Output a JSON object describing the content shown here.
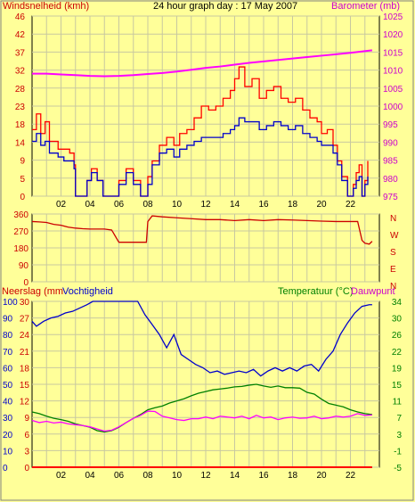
{
  "chart_data": [
    {
      "type": "line",
      "title": "24 hour graph day : 17 May 2007",
      "ylabel": "Windsnelheid (kmh)",
      "y2label": "Barometer (mb)",
      "xticks": [
        "02",
        "04",
        "06",
        "08",
        "10",
        "12",
        "14",
        "16",
        "18",
        "20",
        "22"
      ],
      "ylim": [
        0,
        46
      ],
      "yticks": [
        "0",
        "5",
        "9",
        "14",
        "18",
        "23",
        "28",
        "32",
        "37",
        "42",
        "46"
      ],
      "y2lim": [
        975,
        1025
      ],
      "y2ticks": [
        "975",
        "980",
        "985",
        "990",
        "995",
        "1000",
        "1005",
        "1010",
        "1015",
        "1020",
        "1025"
      ],
      "colors": {
        "gust": "#ff0000",
        "wind": "#0000cc",
        "barometer": "#ff00ff"
      },
      "series": [
        {
          "key": "gust",
          "axis": "y",
          "x": [
            0,
            0.3,
            0.6,
            0.9,
            1.2,
            1.5,
            1.8,
            2.2,
            2.6,
            2.9,
            3,
            3.4,
            3.5,
            3.8,
            4.1,
            4.5,
            4.9,
            5.1,
            5.4,
            5.7,
            6,
            6.5,
            7,
            7.5,
            7.9,
            8,
            8.3,
            8.8,
            9.3,
            9.8,
            10.2,
            10.7,
            11.2,
            11.7,
            12.2,
            12.7,
            13.2,
            13.7,
            14,
            14.3,
            14.7,
            15.2,
            15.7,
            16.2,
            16.7,
            17.2,
            17.7,
            18.2,
            18.7,
            19.2,
            19.7,
            20,
            20.4,
            20.8,
            21.1,
            21.4,
            21.8,
            22,
            22.2,
            22.4,
            22.6,
            22.8,
            23,
            23.2
          ],
          "y": [
            17,
            21,
            16,
            19,
            14,
            14,
            12,
            12,
            11,
            8,
            0,
            0,
            0,
            4,
            7,
            4,
            0,
            0,
            0,
            0,
            4,
            7,
            4,
            0,
            0,
            5,
            9,
            13,
            15,
            13,
            16,
            17,
            20,
            23,
            22,
            23,
            25,
            27,
            30,
            33,
            28,
            30,
            25,
            27,
            28,
            25,
            24,
            25,
            22,
            20,
            19,
            16,
            17,
            13,
            9,
            5,
            0,
            0,
            3,
            6,
            8,
            0,
            4,
            9
          ]
        },
        {
          "key": "wind",
          "axis": "y",
          "x": [
            0,
            0.3,
            0.6,
            0.9,
            1.2,
            1.5,
            1.8,
            2.2,
            2.6,
            2.9,
            3,
            3.4,
            3.5,
            3.8,
            4.1,
            4.5,
            4.9,
            5.1,
            5.4,
            5.7,
            6,
            6.5,
            7,
            7.5,
            7.9,
            8,
            8.3,
            8.8,
            9.3,
            9.8,
            10.2,
            10.7,
            11.2,
            11.7,
            12.2,
            12.7,
            13.2,
            13.7,
            14,
            14.3,
            14.7,
            15.2,
            15.7,
            16.2,
            16.7,
            17.2,
            17.7,
            18.2,
            18.7,
            19.2,
            19.7,
            20,
            20.4,
            20.8,
            21.1,
            21.4,
            21.8,
            22,
            22.2,
            22.4,
            22.6,
            22.8,
            23,
            23.2
          ],
          "y": [
            14,
            16,
            13,
            14,
            11,
            11,
            10,
            9,
            9,
            7,
            0,
            0,
            0,
            4,
            6,
            4,
            0,
            0,
            0,
            0,
            3,
            6,
            3,
            0,
            0,
            3,
            8,
            11,
            12,
            10,
            12,
            13,
            14,
            15,
            15,
            15,
            16,
            17,
            18,
            20,
            19,
            19,
            17,
            18,
            19,
            18,
            17,
            18,
            16,
            15,
            14,
            13,
            13,
            11,
            8,
            4,
            0,
            0,
            2,
            4,
            5,
            0,
            3,
            5
          ]
        },
        {
          "key": "barometer",
          "axis": "y2",
          "x": [
            0,
            1,
            2,
            3,
            4,
            5,
            6,
            7,
            8,
            9,
            10,
            11,
            12,
            13,
            14,
            15,
            16,
            17,
            18,
            19,
            20,
            21,
            22,
            23.5
          ],
          "y": [
            1009,
            1009,
            1008.8,
            1008.6,
            1008.4,
            1008.3,
            1008.4,
            1008.6,
            1008.9,
            1009.2,
            1009.6,
            1010.1,
            1010.6,
            1011.0,
            1011.5,
            1012.0,
            1012.4,
            1012.8,
            1013.2,
            1013.6,
            1014.0,
            1014.4,
            1014.8,
            1015.5
          ]
        }
      ]
    },
    {
      "type": "line",
      "yticks": [
        "0",
        "90",
        "180",
        "270",
        "360"
      ],
      "ylim": [
        0,
        360
      ],
      "y2ticks": [
        "N",
        "W",
        "S",
        "E",
        "N"
      ],
      "colors": {
        "direction": "#cc0000"
      },
      "series": [
        {
          "key": "direction",
          "x": [
            0,
            0.5,
            1,
            1.5,
            2,
            2.5,
            3,
            3.5,
            4,
            4.5,
            5,
            5.5,
            6,
            6.5,
            7,
            7.5,
            7.9,
            8,
            8.3,
            9,
            10,
            11,
            12,
            13,
            14,
            15,
            16,
            17,
            18,
            19,
            20,
            21,
            22,
            22.5,
            22.8,
            23,
            23.3,
            23.5
          ],
          "y": [
            320,
            318,
            315,
            305,
            300,
            290,
            285,
            282,
            280,
            280,
            280,
            275,
            210,
            210,
            210,
            210,
            210,
            320,
            350,
            345,
            340,
            335,
            330,
            330,
            325,
            330,
            325,
            330,
            328,
            325,
            322,
            320,
            320,
            320,
            220,
            205,
            200,
            215
          ]
        }
      ]
    },
    {
      "type": "line",
      "ylabel": "Neerslag (mm",
      "ylabel_b": "Vochtigheid",
      "y2label": "Temperatuur (°C)",
      "y2label_b": "Dauwpunt",
      "xticks": [
        "02",
        "04",
        "06",
        "08",
        "10",
        "12",
        "14",
        "16",
        "18",
        "20",
        "22"
      ],
      "ylim": [
        0,
        30
      ],
      "yticks": [
        "0",
        "3",
        "6",
        "9",
        "12",
        "15",
        "18",
        "21",
        "24",
        "27",
        "30"
      ],
      "humlim": [
        0,
        100
      ],
      "humticks": [
        "0",
        "10",
        "20",
        "30",
        "40",
        "50",
        "60",
        "70",
        "80",
        "90",
        "100"
      ],
      "y2lim": [
        -5,
        34
      ],
      "y2ticks": [
        "-5",
        "-1",
        "3",
        "7",
        "11",
        "15",
        "19",
        "22",
        "26",
        "30",
        "34"
      ],
      "colors": {
        "humidity": "#0000cc",
        "temperature": "#008000",
        "dewpoint": "#ff00ff",
        "rain": "#ff0000"
      },
      "series": [
        {
          "key": "humidity",
          "axis": "hum",
          "x": [
            0,
            0.3,
            0.8,
            1.3,
            1.8,
            2.3,
            2.8,
            3.3,
            3.8,
            4.2,
            4.8,
            5.3,
            5.8,
            6.3,
            6.8,
            7.3,
            7.8,
            8.3,
            8.8,
            9.3,
            9.8,
            10.3,
            10.8,
            11.3,
            11.8,
            12.3,
            12.8,
            13.3,
            13.8,
            14.3,
            14.8,
            15.3,
            15.8,
            16.3,
            16.8,
            17.3,
            17.8,
            18.3,
            18.8,
            19.3,
            19.8,
            20.3,
            20.8,
            21.3,
            21.8,
            22.3,
            22.8,
            23.3,
            23.5
          ],
          "y": [
            88,
            85,
            88,
            90,
            91,
            93,
            94,
            96,
            98,
            100,
            100,
            100,
            100,
            100,
            100,
            100,
            92,
            86,
            80,
            72,
            80,
            68,
            65,
            62,
            60,
            57,
            58,
            56,
            57,
            58,
            57,
            59,
            55,
            58,
            60,
            58,
            60,
            58,
            61,
            62,
            58,
            65,
            70,
            80,
            87,
            93,
            97,
            98,
            98
          ]
        },
        {
          "key": "temperature",
          "axis": "y2",
          "x": [
            0,
            0.5,
            1,
            1.5,
            2,
            2.5,
            3,
            3.5,
            4,
            4.5,
            5,
            5.5,
            6,
            6.5,
            7,
            7.5,
            8,
            8.5,
            9,
            9.5,
            10,
            10.5,
            11,
            11.5,
            12,
            12.5,
            13,
            13.5,
            14,
            14.5,
            15,
            15.5,
            16,
            16.5,
            17,
            17.5,
            18,
            18.5,
            19,
            19.5,
            20,
            20.5,
            21,
            21.5,
            22,
            22.5,
            23,
            23.5
          ],
          "y": [
            8,
            7.6,
            7,
            6.5,
            6.2,
            5.8,
            5.2,
            4.8,
            4.4,
            3.6,
            3.3,
            3.6,
            4.4,
            5.5,
            6.5,
            7.4,
            8.5,
            9,
            9.4,
            10.1,
            10.6,
            11.1,
            11.8,
            12.4,
            12.8,
            13.2,
            13.4,
            13.6,
            13.9,
            14,
            14.3,
            14.5,
            14.1,
            13.8,
            14.1,
            13.7,
            13.7,
            13.6,
            12.6,
            12.2,
            11,
            10,
            9.6,
            9.2,
            8.5,
            8,
            7.6,
            7.4
          ]
        },
        {
          "key": "dewpoint",
          "axis": "y2",
          "x": [
            0,
            0.5,
            1,
            1.5,
            2,
            2.5,
            3,
            3.5,
            4,
            4.5,
            5,
            5.5,
            6,
            6.5,
            7,
            7.5,
            8,
            8.5,
            9,
            9.5,
            10,
            10.5,
            11,
            11.5,
            12,
            12.5,
            13,
            13.5,
            14,
            14.5,
            15,
            15.5,
            16,
            16.5,
            17,
            17.5,
            18,
            18.5,
            19,
            19.5,
            20,
            20.5,
            21,
            21.5,
            22,
            22.5,
            23,
            23.5
          ],
          "y": [
            6,
            5.5,
            5.8,
            5.4,
            5.6,
            5.2,
            5,
            4.8,
            4.5,
            4,
            3.5,
            3.7,
            4.5,
            5.5,
            6.5,
            7.2,
            8.2,
            8.1,
            7,
            6.6,
            6.2,
            6,
            6.4,
            6.4,
            6.8,
            6.4,
            7,
            6.8,
            6.6,
            7,
            6.4,
            7.2,
            6.6,
            6.8,
            6.2,
            6.6,
            6.8,
            6.5,
            6.6,
            7,
            6.4,
            6.6,
            7,
            6.8,
            7,
            7.6,
            7.2,
            7.3
          ]
        },
        {
          "key": "rain",
          "axis": "y",
          "x": [
            0,
            23.5
          ],
          "y": [
            0,
            0
          ]
        }
      ]
    }
  ]
}
